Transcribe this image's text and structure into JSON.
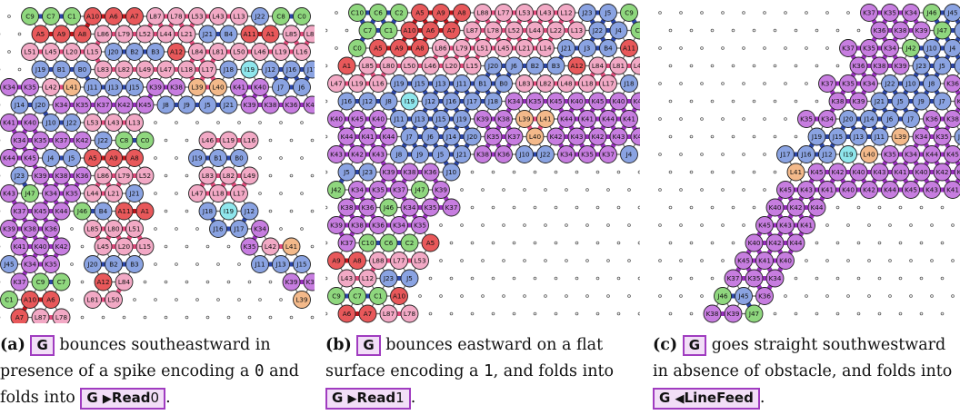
{
  "figure": {
    "colors": {
      "background": "#ffffff",
      "grid_dot": "#555555",
      "magenta_node": "#c77de0",
      "magenta_bond": "#9b2fc0",
      "blue_node": "#8aa3e2",
      "blue_bond": "#2b46a8",
      "red_node": "#e8585a",
      "red_bond": "#c0141a",
      "pink_node": "#f2a9c5",
      "pink_bond": "#e34b7d",
      "green_node": "#8fd77e",
      "cyan_node": "#8fe6ec",
      "orange_node": "#f3b98a",
      "highlight_border": "#a03cc0",
      "highlight_fill": "#f2def7"
    },
    "panels": [
      {
        "letter": "(a)",
        "glyph": "G",
        "text_1": "bounces southeastward in presence of a spike encoding a",
        "code": "0",
        "text_2": "and folds into",
        "fold_glyph": "G",
        "fold_arrow": "▶",
        "fold_state": "Read",
        "fold_bit": "0",
        "end": ".",
        "labels": [
          "C9",
          "C7",
          "C1",
          "A10",
          "A6",
          "A7",
          "L87",
          "L78",
          "L53",
          "L43",
          "L13",
          "J22",
          "C8",
          "C0",
          "A5",
          "A9",
          "A8",
          "L86",
          "L79",
          "L52",
          "L44",
          "L21",
          "J21",
          "B4",
          "A11",
          "A1",
          "L85",
          "L80",
          "L51",
          "L45",
          "L20",
          "L15",
          "J20",
          "B2",
          "B3",
          "A12",
          "L84",
          "L81",
          "L50",
          "L46",
          "L19",
          "L16",
          "J19",
          "B1",
          "B0",
          "L83",
          "L82",
          "L49",
          "L47",
          "L18",
          "L17",
          "J18",
          "I19",
          "J12",
          "J16",
          "J17",
          "K34",
          "K35",
          "L42",
          "L41",
          "J11",
          "J13",
          "J15",
          "K39",
          "K38",
          "L39",
          "L40",
          "K41",
          "K40",
          "J7",
          "J6",
          "J14",
          "J20",
          "K34",
          "K35",
          "K37",
          "K42",
          "K45",
          "J8",
          "J9",
          "J5",
          "J21",
          "K39",
          "K38",
          "K36",
          "K43",
          "K41",
          "K40",
          "J10",
          "J22",
          "K34",
          "K35",
          "K37",
          "K42",
          "K44",
          "K45",
          "J4",
          "J5",
          "J23",
          "K39",
          "K38",
          "K36",
          "K43",
          "J47",
          "K34",
          "K35",
          "K37",
          "K45",
          "K44",
          "J46",
          "K39",
          "K38",
          "K36",
          "K41",
          "K40",
          "K42",
          "J45",
          "K34",
          "K35",
          "K37"
        ]
      },
      {
        "letter": "(b)",
        "glyph": "G",
        "text_1": "bounces eastward on a flat surface encoding a",
        "code": "1",
        "text_2": "and folds into",
        "fold_glyph": "G",
        "fold_arrow": "▶",
        "fold_state": "Read",
        "fold_bit": "1",
        "end": ".",
        "labels": [
          "C10",
          "C6",
          "C2",
          "A5",
          "A9",
          "A8",
          "L88",
          "L77",
          "L53",
          "L43",
          "L12",
          "J23",
          "J5",
          "C9",
          "C7",
          "C1",
          "A10",
          "A6",
          "A7",
          "L87",
          "L78",
          "L52",
          "L44",
          "L22",
          "L13",
          "J22",
          "J4",
          "C8",
          "C0",
          "A5",
          "A9",
          "A8",
          "L86",
          "L79",
          "L51",
          "L45",
          "L21",
          "L14",
          "J21",
          "J3",
          "B4",
          "A11",
          "A1",
          "L85",
          "L80",
          "L50",
          "L46",
          "L20",
          "L15",
          "J20",
          "J6",
          "B2",
          "B3",
          "A12",
          "L84",
          "L81",
          "L49",
          "L47",
          "L19",
          "L16",
          "J19",
          "J15",
          "J13",
          "J11",
          "B1",
          "B0",
          "L83",
          "L82",
          "L48",
          "L18",
          "L17",
          "J18",
          "J16",
          "J12",
          "J8",
          "I19",
          "J12",
          "J16",
          "J17",
          "J18",
          "K34",
          "K35",
          "K45",
          "K40",
          "K45",
          "K40",
          "K45",
          "K40",
          "K45",
          "K40",
          "J11",
          "J13",
          "J15",
          "J19",
          "K39",
          "K38",
          "L39",
          "L41",
          "K44",
          "K41",
          "K44",
          "K41",
          "K44",
          "K41",
          "K44",
          "J7",
          "J6",
          "J14",
          "J20",
          "K35",
          "K37",
          "L40",
          "K42",
          "K43",
          "K42",
          "K43",
          "K42",
          "K43",
          "K42",
          "K43",
          "J8",
          "J9",
          "J5",
          "J21",
          "K38",
          "K36",
          "J10",
          "J22",
          "K34",
          "K35",
          "K37",
          "J4",
          "J5",
          "J23",
          "K39",
          "K38",
          "K36",
          "J10",
          "J42",
          "K34",
          "K35",
          "K37",
          "J47",
          "K39",
          "K38",
          "K36",
          "J46",
          "K34",
          "K35",
          "K37",
          "K39",
          "K38",
          "K36",
          "K34",
          "K35",
          "K37"
        ]
      },
      {
        "letter": "(c)",
        "glyph": "G",
        "text_1": "goes straight southwestward in absence of obstacle, and folds into",
        "fold_glyph": "G",
        "fold_arrow": "◀",
        "fold_state": "LineFeed",
        "end": ".",
        "labels": [
          "K37",
          "K35",
          "K34",
          "J46",
          "J45",
          "K36",
          "K38",
          "K39",
          "J47",
          "J5",
          "K37",
          "K35",
          "K34",
          "J42",
          "J10",
          "J4",
          "K36",
          "K38",
          "K39",
          "J23",
          "J5",
          "J9",
          "K37",
          "K35",
          "K34",
          "J22",
          "J10",
          "J8",
          "K36",
          "K38",
          "K39",
          "J21",
          "J5",
          "J9",
          "J7",
          "K37",
          "K35",
          "K34",
          "J20",
          "J14",
          "J6",
          "J7",
          "K36",
          "K38",
          "J19",
          "J15",
          "J13",
          "J11",
          "L39",
          "K34",
          "K35",
          "J18",
          "J17",
          "J16",
          "J12",
          "I19",
          "L40",
          "K35",
          "K34",
          "K44",
          "K45",
          "L41",
          "K45",
          "K42",
          "K40",
          "K43",
          "K41",
          "K40",
          "K42",
          "K44",
          "K45",
          "K43",
          "K41",
          "K40",
          "K42",
          "K44",
          "K45",
          "K43",
          "K41",
          "K40",
          "K42",
          "K44",
          "K45",
          "K43",
          "K41",
          "K40",
          "K42",
          "K44",
          "K45",
          "K41",
          "K40"
        ]
      }
    ]
  }
}
